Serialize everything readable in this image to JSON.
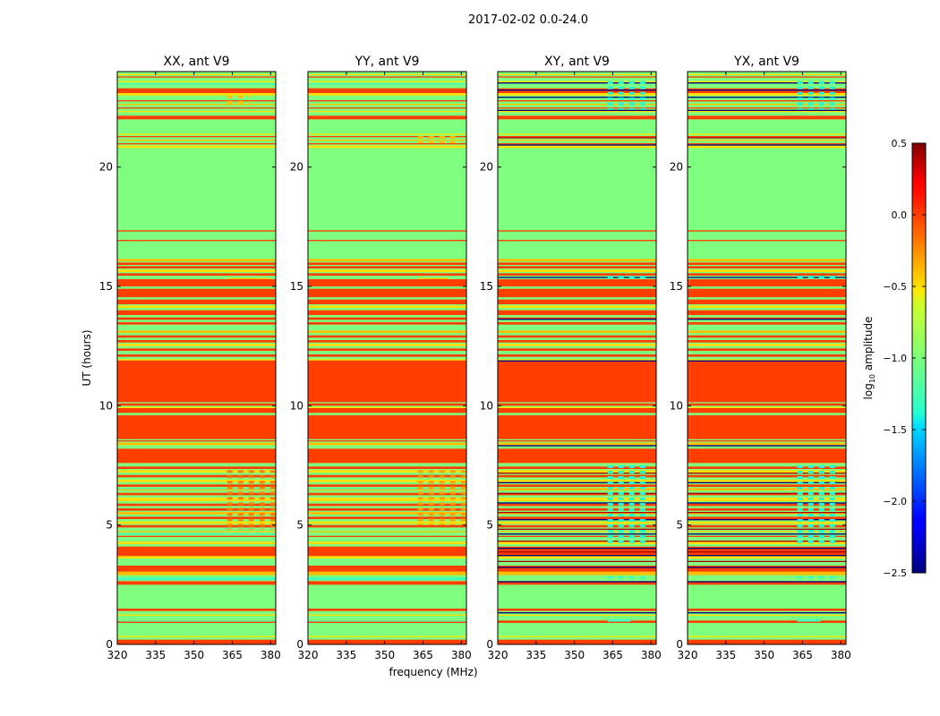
{
  "chart_data": {
    "type": "heatmap",
    "title": "2017-02-02 0.0-24.0",
    "xlabel": "frequency (MHz)",
    "ylabel": "UT (hours)",
    "xlim": [
      320,
      382
    ],
    "ylim": [
      0,
      24
    ],
    "x_ticks": [
      "320",
      "335",
      "350",
      "365",
      "380"
    ],
    "y_ticks": [
      "0",
      "5",
      "10",
      "15",
      "20"
    ],
    "colorbar": {
      "label_main": "log",
      "label_sub": "10",
      "label_tail": " amplitude",
      "range": [
        -2.5,
        0.5
      ],
      "ticks": [
        "0.5",
        "0.0",
        "−0.5",
        "−1.0",
        "−1.5",
        "−2.0",
        "−2.5"
      ],
      "tick_values": [
        0.5,
        0.0,
        -0.5,
        -1.0,
        -1.5,
        -2.0,
        -2.5
      ]
    },
    "baseline": {
      "value": -0.7,
      "color": "#7fff7f",
      "bands": [
        {
          "t0": 0.0,
          "t1": 0.2,
          "value": 0.0
        },
        {
          "t0": 0.3,
          "t1": 0.35,
          "value": -0.5
        },
        {
          "t0": 0.9,
          "t1": 1.0,
          "value": 0.0
        },
        {
          "t0": 1.2,
          "t1": 1.25,
          "value": -0.5
        },
        {
          "t0": 1.4,
          "t1": 1.5,
          "value": 0.0
        },
        {
          "t0": 2.5,
          "t1": 2.65,
          "value": 0.0
        },
        {
          "t0": 2.9,
          "t1": 3.05,
          "value": -0.4
        },
        {
          "t0": 3.05,
          "t1": 3.3,
          "value": 0.0
        },
        {
          "t0": 3.6,
          "t1": 3.7,
          "value": -0.5
        },
        {
          "t0": 3.7,
          "t1": 4.1,
          "value": 0.0
        },
        {
          "t0": 4.2,
          "t1": 4.3,
          "value": -0.5
        },
        {
          "t0": 4.5,
          "t1": 4.55,
          "value": 0.0
        },
        {
          "t0": 4.7,
          "t1": 4.75,
          "value": -0.4
        },
        {
          "t0": 4.9,
          "t1": 5.0,
          "value": 0.0
        },
        {
          "t0": 5.05,
          "t1": 5.15,
          "value": -0.5
        },
        {
          "t0": 5.25,
          "t1": 5.35,
          "value": 0.0
        },
        {
          "t0": 5.45,
          "t1": 5.55,
          "value": -0.4
        },
        {
          "t0": 5.6,
          "t1": 5.7,
          "value": 0.0
        },
        {
          "t0": 5.8,
          "t1": 5.9,
          "value": 0.0
        },
        {
          "t0": 6.0,
          "t1": 6.15,
          "value": -0.5
        },
        {
          "t0": 6.25,
          "t1": 6.35,
          "value": 0.0
        },
        {
          "t0": 6.45,
          "t1": 6.55,
          "value": -0.4
        },
        {
          "t0": 6.6,
          "t1": 6.7,
          "value": 0.0
        },
        {
          "t0": 6.8,
          "t1": 6.9,
          "value": -0.5
        },
        {
          "t0": 7.0,
          "t1": 7.1,
          "value": 0.0
        },
        {
          "t0": 7.2,
          "t1": 7.3,
          "value": -0.5
        },
        {
          "t0": 7.35,
          "t1": 7.45,
          "value": 0.0
        },
        {
          "t0": 7.6,
          "t1": 8.2,
          "value": 0.0
        },
        {
          "t0": 8.35,
          "t1": 8.45,
          "value": -0.4
        },
        {
          "t0": 8.5,
          "t1": 8.55,
          "value": 0.0
        },
        {
          "t0": 8.6,
          "t1": 9.6,
          "value": 0.0
        },
        {
          "t0": 9.7,
          "t1": 9.9,
          "value": 0.0
        },
        {
          "t0": 9.9,
          "t1": 9.95,
          "value": -0.5
        },
        {
          "t0": 10.0,
          "t1": 10.1,
          "value": 0.0
        },
        {
          "t0": 10.15,
          "t1": 11.9,
          "value": 0.0
        },
        {
          "t0": 11.9,
          "t1": 11.95,
          "value": -0.5
        },
        {
          "t0": 12.05,
          "t1": 12.15,
          "value": 0.0
        },
        {
          "t0": 12.3,
          "t1": 12.4,
          "value": 0.0
        },
        {
          "t0": 12.5,
          "t1": 12.6,
          "value": -0.5
        },
        {
          "t0": 12.65,
          "t1": 12.75,
          "value": 0.0
        },
        {
          "t0": 12.85,
          "t1": 12.95,
          "value": 0.0
        },
        {
          "t0": 13.05,
          "t1": 13.15,
          "value": -0.4
        },
        {
          "t0": 13.4,
          "t1": 13.5,
          "value": 0.0
        },
        {
          "t0": 13.6,
          "t1": 13.7,
          "value": 0.0
        },
        {
          "t0": 13.8,
          "t1": 14.0,
          "value": 0.0
        },
        {
          "t0": 14.1,
          "t1": 14.2,
          "value": -0.5
        },
        {
          "t0": 14.25,
          "t1": 14.45,
          "value": 0.0
        },
        {
          "t0": 14.55,
          "t1": 14.9,
          "value": 0.0
        },
        {
          "t0": 15.0,
          "t1": 15.3,
          "value": 0.0
        },
        {
          "t0": 15.45,
          "t1": 15.55,
          "value": 0.0
        },
        {
          "t0": 15.6,
          "t1": 15.7,
          "value": -0.5
        },
        {
          "t0": 15.75,
          "t1": 15.85,
          "value": 0.0
        },
        {
          "t0": 15.9,
          "t1": 16.0,
          "value": 0.0
        },
        {
          "t0": 16.05,
          "t1": 16.15,
          "value": -0.4
        },
        {
          "t0": 16.9,
          "t1": 16.95,
          "value": 0.0
        },
        {
          "t0": 17.3,
          "t1": 17.35,
          "value": 0.0
        },
        {
          "t0": 20.8,
          "t1": 20.9,
          "value": -0.5
        },
        {
          "t0": 20.95,
          "t1": 21.0,
          "value": 0.0
        },
        {
          "t0": 21.1,
          "t1": 21.15,
          "value": -0.4
        },
        {
          "t0": 21.25,
          "t1": 21.3,
          "value": 0.0
        },
        {
          "t0": 21.35,
          "t1": 21.4,
          "value": -0.5
        },
        {
          "t0": 22.0,
          "t1": 22.15,
          "value": 0.0
        },
        {
          "t0": 22.3,
          "t1": 22.35,
          "value": -0.5
        },
        {
          "t0": 22.45,
          "t1": 22.5,
          "value": 0.0
        },
        {
          "t0": 22.6,
          "t1": 22.65,
          "value": -0.4
        },
        {
          "t0": 22.75,
          "t1": 22.8,
          "value": 0.0
        },
        {
          "t0": 23.0,
          "t1": 23.1,
          "value": -0.5
        },
        {
          "t0": 23.1,
          "t1": 23.3,
          "value": 0.0
        },
        {
          "t0": 23.55,
          "t1": 23.6,
          "value": -0.5
        },
        {
          "t0": 23.75,
          "t1": 23.8,
          "value": 0.0
        },
        {
          "t0": 23.85,
          "t1": 23.9,
          "value": -0.5
        }
      ]
    },
    "panels": [
      {
        "title": "XX, ant V9",
        "overlays": [
          {
            "t0": 0.95,
            "t1": 1.0,
            "value": -1.2,
            "f0": 320,
            "f1": 382
          },
          {
            "t0": 2.7,
            "t1": 2.8,
            "value": -1.3,
            "f0": 320,
            "f1": 382
          },
          {
            "t0": 4.6,
            "t1": 4.65,
            "value": -1.3,
            "f0": 320,
            "f1": 382
          },
          {
            "t0": 6.5,
            "t1": 6.55,
            "value": -1.3,
            "f0": 320,
            "f1": 382
          },
          {
            "t0": 23.45,
            "t1": 23.5,
            "value": -1.3,
            "f0": 320,
            "f1": 382
          },
          {
            "t0": 4.8,
            "t1": 7.3,
            "value": -0.2,
            "f0": 363,
            "f1": 382,
            "pattern": true
          },
          {
            "t0": 15.3,
            "t1": 15.35,
            "value": -0.4,
            "f0": 363,
            "f1": 380
          },
          {
            "t0": 22.6,
            "t1": 23.0,
            "value": -0.4,
            "f0": 363,
            "f1": 372,
            "pattern": true
          }
        ]
      },
      {
        "title": "YY, ant V9",
        "overlays": [
          {
            "t0": 0.95,
            "t1": 1.0,
            "value": -1.2,
            "f0": 320,
            "f1": 382
          },
          {
            "t0": 2.7,
            "t1": 2.8,
            "value": -1.3,
            "f0": 320,
            "f1": 382
          },
          {
            "t0": 6.5,
            "t1": 6.55,
            "value": -1.3,
            "f0": 320,
            "f1": 382
          },
          {
            "t0": 23.45,
            "t1": 23.5,
            "value": -1.3,
            "f0": 320,
            "f1": 382
          },
          {
            "t0": 5.0,
            "t1": 7.3,
            "value": -0.3,
            "f0": 363,
            "f1": 382,
            "pattern": true
          },
          {
            "t0": 15.3,
            "t1": 15.35,
            "value": -0.4,
            "f0": 363,
            "f1": 375
          },
          {
            "t0": 21.0,
            "t1": 21.3,
            "value": -0.4,
            "f0": 363,
            "f1": 380,
            "pattern": true
          }
        ]
      },
      {
        "title": "XY, ant V9",
        "overlays": [
          {
            "t0": 0.95,
            "t1": 1.05,
            "value": -1.3,
            "f0": 363,
            "f1": 372
          },
          {
            "t0": 1.3,
            "t1": 1.35,
            "value": -2.5,
            "f0": 320,
            "f1": 382
          },
          {
            "t0": 2.6,
            "t1": 2.65,
            "value": -2.5,
            "f0": 320,
            "f1": 382
          },
          {
            "t0": 2.75,
            "t1": 2.85,
            "value": -1.3,
            "f0": 363,
            "f1": 378,
            "pattern": true
          },
          {
            "t0": 3.2,
            "t1": 3.25,
            "value": -2.5,
            "f0": 320,
            "f1": 382
          },
          {
            "t0": 3.45,
            "t1": 3.5,
            "value": 0.4,
            "f0": 320,
            "f1": 382
          },
          {
            "t0": 3.7,
            "t1": 3.75,
            "value": -2.5,
            "f0": 320,
            "f1": 382
          },
          {
            "t0": 3.85,
            "t1": 3.9,
            "value": 0.4,
            "f0": 320,
            "f1": 382
          },
          {
            "t0": 4.0,
            "t1": 4.05,
            "value": -2.5,
            "f0": 320,
            "f1": 382
          },
          {
            "t0": 4.3,
            "t1": 4.35,
            "value": 0.4,
            "f0": 320,
            "f1": 382
          },
          {
            "t0": 4.6,
            "t1": 4.65,
            "value": -2.5,
            "f0": 320,
            "f1": 382
          },
          {
            "t0": 4.8,
            "t1": 4.85,
            "value": 0.4,
            "f0": 320,
            "f1": 382
          },
          {
            "t0": 5.2,
            "t1": 5.25,
            "value": -2.5,
            "f0": 320,
            "f1": 382
          },
          {
            "t0": 5.5,
            "t1": 5.55,
            "value": 0.4,
            "f0": 320,
            "f1": 382
          },
          {
            "t0": 5.9,
            "t1": 5.95,
            "value": -2.5,
            "f0": 320,
            "f1": 382
          },
          {
            "t0": 6.3,
            "t1": 6.35,
            "value": 0.4,
            "f0": 320,
            "f1": 382
          },
          {
            "t0": 6.75,
            "t1": 6.8,
            "value": -2.5,
            "f0": 320,
            "f1": 382
          },
          {
            "t0": 7.15,
            "t1": 7.2,
            "value": 0.4,
            "f0": 320,
            "f1": 382
          },
          {
            "t0": 4.2,
            "t1": 7.5,
            "value": -1.4,
            "f0": 363,
            "f1": 378,
            "pattern": true
          },
          {
            "t0": 8.3,
            "t1": 8.35,
            "value": -2.5,
            "f0": 320,
            "f1": 382
          },
          {
            "t0": 11.85,
            "t1": 11.9,
            "value": -2.5,
            "f0": 320,
            "f1": 382
          },
          {
            "t0": 13.6,
            "t1": 13.65,
            "value": -2.5,
            "f0": 320,
            "f1": 382
          },
          {
            "t0": 15.35,
            "t1": 15.4,
            "value": -2.5,
            "f0": 320,
            "f1": 382
          },
          {
            "t0": 15.3,
            "t1": 15.45,
            "value": -1.4,
            "f0": 363,
            "f1": 378,
            "pattern": true
          },
          {
            "t0": 20.9,
            "t1": 20.95,
            "value": -2.5,
            "f0": 320,
            "f1": 382
          },
          {
            "t0": 21.2,
            "t1": 21.25,
            "value": 0.4,
            "f0": 320,
            "f1": 382
          },
          {
            "t0": 22.35,
            "t1": 22.4,
            "value": -2.5,
            "f0": 320,
            "f1": 382
          },
          {
            "t0": 22.9,
            "t1": 22.95,
            "value": -2.5,
            "f0": 320,
            "f1": 382
          },
          {
            "t0": 23.2,
            "t1": 23.25,
            "value": -2.5,
            "f0": 320,
            "f1": 382
          },
          {
            "t0": 23.5,
            "t1": 23.55,
            "value": -2.5,
            "f0": 320,
            "f1": 382
          },
          {
            "t0": 22.4,
            "t1": 23.6,
            "value": -1.4,
            "f0": 363,
            "f1": 378,
            "pattern": true
          }
        ]
      },
      {
        "title": "YX, ant V9",
        "overlays": [
          {
            "t0": 0.95,
            "t1": 1.05,
            "value": -1.3,
            "f0": 363,
            "f1": 372
          },
          {
            "t0": 1.3,
            "t1": 1.35,
            "value": -2.5,
            "f0": 320,
            "f1": 382
          },
          {
            "t0": 2.6,
            "t1": 2.65,
            "value": -2.5,
            "f0": 320,
            "f1": 382
          },
          {
            "t0": 2.75,
            "t1": 2.85,
            "value": -1.3,
            "f0": 363,
            "f1": 378,
            "pattern": true
          },
          {
            "t0": 3.2,
            "t1": 3.25,
            "value": -2.5,
            "f0": 320,
            "f1": 382
          },
          {
            "t0": 3.45,
            "t1": 3.5,
            "value": 0.4,
            "f0": 320,
            "f1": 382
          },
          {
            "t0": 3.7,
            "t1": 3.75,
            "value": -2.5,
            "f0": 320,
            "f1": 382
          },
          {
            "t0": 3.85,
            "t1": 3.9,
            "value": 0.4,
            "f0": 320,
            "f1": 382
          },
          {
            "t0": 4.0,
            "t1": 4.05,
            "value": -2.5,
            "f0": 320,
            "f1": 382
          },
          {
            "t0": 4.3,
            "t1": 4.35,
            "value": 0.4,
            "f0": 320,
            "f1": 382
          },
          {
            "t0": 4.6,
            "t1": 4.65,
            "value": -2.5,
            "f0": 320,
            "f1": 382
          },
          {
            "t0": 4.8,
            "t1": 4.85,
            "value": 0.4,
            "f0": 320,
            "f1": 382
          },
          {
            "t0": 5.2,
            "t1": 5.25,
            "value": -2.5,
            "f0": 320,
            "f1": 382
          },
          {
            "t0": 5.5,
            "t1": 5.55,
            "value": 0.4,
            "f0": 320,
            "f1": 382
          },
          {
            "t0": 5.9,
            "t1": 5.95,
            "value": -2.5,
            "f0": 320,
            "f1": 382
          },
          {
            "t0": 6.3,
            "t1": 6.35,
            "value": 0.4,
            "f0": 320,
            "f1": 382
          },
          {
            "t0": 6.75,
            "t1": 6.8,
            "value": -2.5,
            "f0": 320,
            "f1": 382
          },
          {
            "t0": 7.15,
            "t1": 7.2,
            "value": 0.4,
            "f0": 320,
            "f1": 382
          },
          {
            "t0": 4.2,
            "t1": 7.5,
            "value": -1.4,
            "f0": 363,
            "f1": 378,
            "pattern": true
          },
          {
            "t0": 8.3,
            "t1": 8.35,
            "value": -2.5,
            "f0": 320,
            "f1": 382
          },
          {
            "t0": 11.85,
            "t1": 11.9,
            "value": -2.5,
            "f0": 320,
            "f1": 382
          },
          {
            "t0": 13.6,
            "t1": 13.65,
            "value": -2.5,
            "f0": 320,
            "f1": 382
          },
          {
            "t0": 15.35,
            "t1": 15.4,
            "value": -2.5,
            "f0": 320,
            "f1": 382
          },
          {
            "t0": 15.3,
            "t1": 15.45,
            "value": -1.4,
            "f0": 363,
            "f1": 378,
            "pattern": true
          },
          {
            "t0": 20.9,
            "t1": 20.95,
            "value": -2.5,
            "f0": 320,
            "f1": 382
          },
          {
            "t0": 21.2,
            "t1": 21.25,
            "value": 0.4,
            "f0": 320,
            "f1": 382
          },
          {
            "t0": 22.35,
            "t1": 22.4,
            "value": -2.5,
            "f0": 320,
            "f1": 382
          },
          {
            "t0": 22.9,
            "t1": 22.95,
            "value": -2.5,
            "f0": 320,
            "f1": 382
          },
          {
            "t0": 23.2,
            "t1": 23.25,
            "value": -2.5,
            "f0": 320,
            "f1": 382
          },
          {
            "t0": 23.5,
            "t1": 23.55,
            "value": -2.5,
            "f0": 320,
            "f1": 382
          },
          {
            "t0": 22.4,
            "t1": 23.6,
            "value": -1.4,
            "f0": 363,
            "f1": 378,
            "pattern": true
          }
        ]
      }
    ]
  }
}
